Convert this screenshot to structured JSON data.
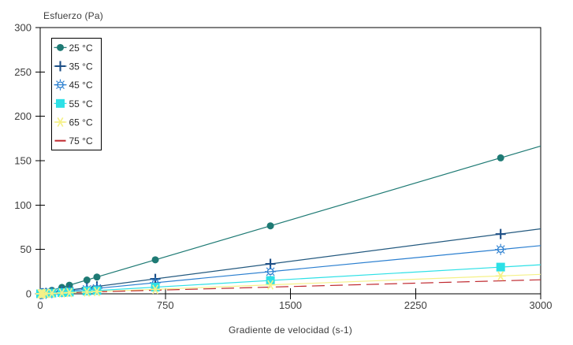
{
  "page": {
    "background": "#ffffff",
    "text_color": "#3d3d3d",
    "axis_color": "#000000"
  },
  "chart_data": {
    "type": "scatter",
    "title": "Esfuerzo (Pa)",
    "xlabel": "Gradiente de velocidad (s-1)",
    "ylabel": "Esfuerzo (Pa)",
    "xlim": [
      0,
      3000
    ],
    "ylim": [
      0,
      300
    ],
    "xticks": [
      0,
      750,
      1500,
      2250,
      3000
    ],
    "yticks": [
      0,
      50,
      100,
      150,
      200,
      250,
      300
    ],
    "grid": false,
    "legend_position": "top-left-inside",
    "x": [
      2,
      4,
      9,
      17,
      35,
      70,
      130,
      175,
      280,
      340,
      690,
      1380,
      2760
    ],
    "series": [
      {
        "name": "25 °C",
        "color": "#1e7a74",
        "marker": "circle",
        "line_style": "solid",
        "values": [
          0.1,
          0.2,
          0.5,
          0.9,
          1.9,
          3.9,
          7.2,
          9.7,
          15.5,
          18.9,
          38.3,
          76.6,
          153.2
        ],
        "trendline": {
          "x0": 0,
          "y0": 0,
          "x1": 3000,
          "y1": 166.5
        }
      },
      {
        "name": "35 °C",
        "color": "#1c4e85",
        "line_color": "#23597f",
        "marker": "plus",
        "line_style": "solid",
        "values": [
          0.0,
          0.1,
          0.2,
          0.4,
          0.9,
          1.7,
          3.2,
          4.3,
          6.8,
          8.3,
          16.8,
          33.7,
          67.3
        ],
        "trendline": {
          "x0": 0,
          "y0": 0,
          "x1": 3000,
          "y1": 73.2
        }
      },
      {
        "name": "45 °C",
        "color": "#2b7fd0",
        "marker": "sun",
        "line_style": "solid",
        "values": [
          0.0,
          0.1,
          0.2,
          0.3,
          0.6,
          1.3,
          2.4,
          3.2,
          5.1,
          6.2,
          12.5,
          25.0,
          50.0
        ],
        "trendline": {
          "x0": 0,
          "y0": 0,
          "x1": 3000,
          "y1": 54.3
        }
      },
      {
        "name": "55 °C",
        "color": "#2de0e6",
        "marker": "square",
        "line_style": "solid",
        "values": [
          0.0,
          0.0,
          0.1,
          0.2,
          0.4,
          0.8,
          1.4,
          1.9,
          3.1,
          3.7,
          7.5,
          15.0,
          30.1
        ],
        "trendline": {
          "x0": 0,
          "y0": 0,
          "x1": 3000,
          "y1": 32.7
        }
      },
      {
        "name": "65 °C",
        "color": "#f5f188",
        "marker": "star6",
        "line_style": "solid",
        "values": [
          0.0,
          0.0,
          0.1,
          0.1,
          0.3,
          0.5,
          0.9,
          1.3,
          2.0,
          2.5,
          5.0,
          10.1,
          20.1
        ],
        "trendline": {
          "x0": 0,
          "y0": 0,
          "x1": 3000,
          "y1": 21.9
        }
      },
      {
        "name": "75 °C",
        "color": "#bf272d",
        "marker": "dash",
        "line_style": "dashed",
        "values": [],
        "trendline": {
          "x0": 0,
          "y0": 0.5,
          "x1": 3000,
          "y1": 15.8
        }
      }
    ]
  }
}
